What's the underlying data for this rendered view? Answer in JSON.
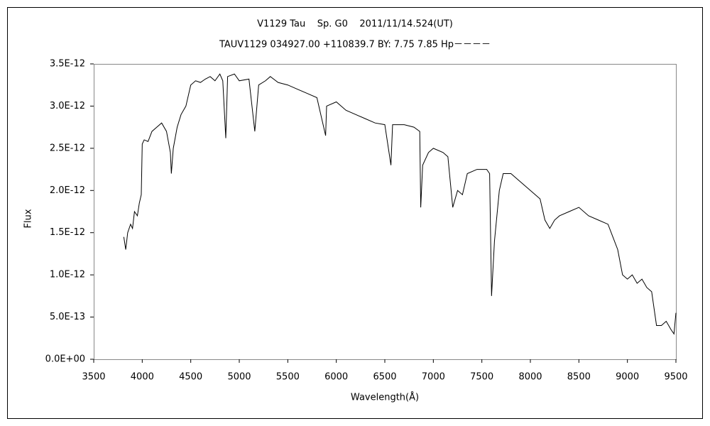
{
  "chart_data": {
    "type": "line",
    "title": "V1129 Tau    Sp. G0    2011/11/14.524(UT)",
    "subtitle": "TAUV1129 034927.00 +110839.7 BY: 7.75 7.85 Hp－－－－",
    "x_label": "Wavelength(Å)",
    "y_label": "Flux",
    "color": "#000000",
    "x": [
      3810,
      3830,
      3850,
      3880,
      3900,
      3920,
      3950,
      3970,
      3990,
      4000,
      4020,
      4060,
      4100,
      4150,
      4200,
      4250,
      4290,
      4300,
      4320,
      4360,
      4400,
      4450,
      4500,
      4550,
      4600,
      4650,
      4700,
      4750,
      4800,
      4830,
      4861,
      4880,
      4950,
      5000,
      5100,
      5160,
      5200,
      5270,
      5320,
      5400,
      5500,
      5600,
      5700,
      5800,
      5890,
      5900,
      6000,
      6100,
      6200,
      6300,
      6400,
      6500,
      6563,
      6580,
      6700,
      6800,
      6860,
      6870,
      6890,
      6950,
      7000,
      7100,
      7150,
      7200,
      7250,
      7300,
      7350,
      7450,
      7550,
      7580,
      7600,
      7630,
      7680,
      7720,
      7800,
      7900,
      8000,
      8100,
      8150,
      8200,
      8250,
      8300,
      8400,
      8500,
      8600,
      8700,
      8800,
      8850,
      8900,
      8950,
      9000,
      9050,
      9100,
      9150,
      9200,
      9250,
      9300,
      9350,
      9400,
      9450,
      9480,
      9500
    ],
    "values": [
      1.45e-12,
      1.3e-12,
      1.5e-12,
      1.6e-12,
      1.55e-12,
      1.75e-12,
      1.7e-12,
      1.85e-12,
      1.95e-12,
      2.55e-12,
      2.6e-12,
      2.58e-12,
      2.7e-12,
      2.75e-12,
      2.8e-12,
      2.7e-12,
      2.45e-12,
      2.2e-12,
      2.5e-12,
      2.75e-12,
      2.9e-12,
      3e-12,
      3.25e-12,
      3.3e-12,
      3.28e-12,
      3.32e-12,
      3.35e-12,
      3.3e-12,
      3.38e-12,
      3.3e-12,
      2.62e-12,
      3.35e-12,
      3.38e-12,
      3.3e-12,
      3.32e-12,
      2.7e-12,
      3.25e-12,
      3.3e-12,
      3.35e-12,
      3.28e-12,
      3.25e-12,
      3.2e-12,
      3.15e-12,
      3.1e-12,
      2.65e-12,
      3e-12,
      3.05e-12,
      2.95e-12,
      2.9e-12,
      2.85e-12,
      2.8e-12,
      2.78e-12,
      2.3e-12,
      2.78e-12,
      2.78e-12,
      2.75e-12,
      2.7e-12,
      1.8e-12,
      2.3e-12,
      2.45e-12,
      2.5e-12,
      2.45e-12,
      2.4e-12,
      1.8e-12,
      2e-12,
      1.95e-12,
      2.2e-12,
      2.25e-12,
      2.25e-12,
      2.2e-12,
      7.5e-13,
      1.4e-12,
      2e-12,
      2.2e-12,
      2.2e-12,
      2.1e-12,
      2e-12,
      1.9e-12,
      1.65e-12,
      1.55e-12,
      1.65e-12,
      1.7e-12,
      1.75e-12,
      1.8e-12,
      1.7e-12,
      1.65e-12,
      1.6e-12,
      1.45e-12,
      1.3e-12,
      1e-12,
      9.5e-13,
      1e-12,
      9e-13,
      9.5e-13,
      8.5e-13,
      8e-13,
      4e-13,
      4e-13,
      4.5e-13,
      3.5e-13,
      3e-13,
      5.5e-13
    ],
    "xlim": [
      3500,
      9500
    ],
    "xticks": [
      3500,
      4000,
      4500,
      5000,
      5500,
      6000,
      6500,
      7000,
      7500,
      8000,
      8500,
      9000,
      9500
    ],
    "ylim": [
      0,
      3.5e-12
    ],
    "yticks": [
      {
        "value": 0,
        "label": "0.0E+00"
      },
      {
        "value": 5e-13,
        "label": "5.0E-13"
      },
      {
        "value": 1e-12,
        "label": "1.0E-12"
      },
      {
        "value": 1.5e-12,
        "label": "1.5E-12"
      },
      {
        "value": 2e-12,
        "label": "2.0E-12"
      },
      {
        "value": 2.5e-12,
        "label": "2.5E-12"
      },
      {
        "value": 3e-12,
        "label": "3.0E-12"
      },
      {
        "value": 3.5e-12,
        "label": "3.5E-12"
      }
    ]
  }
}
